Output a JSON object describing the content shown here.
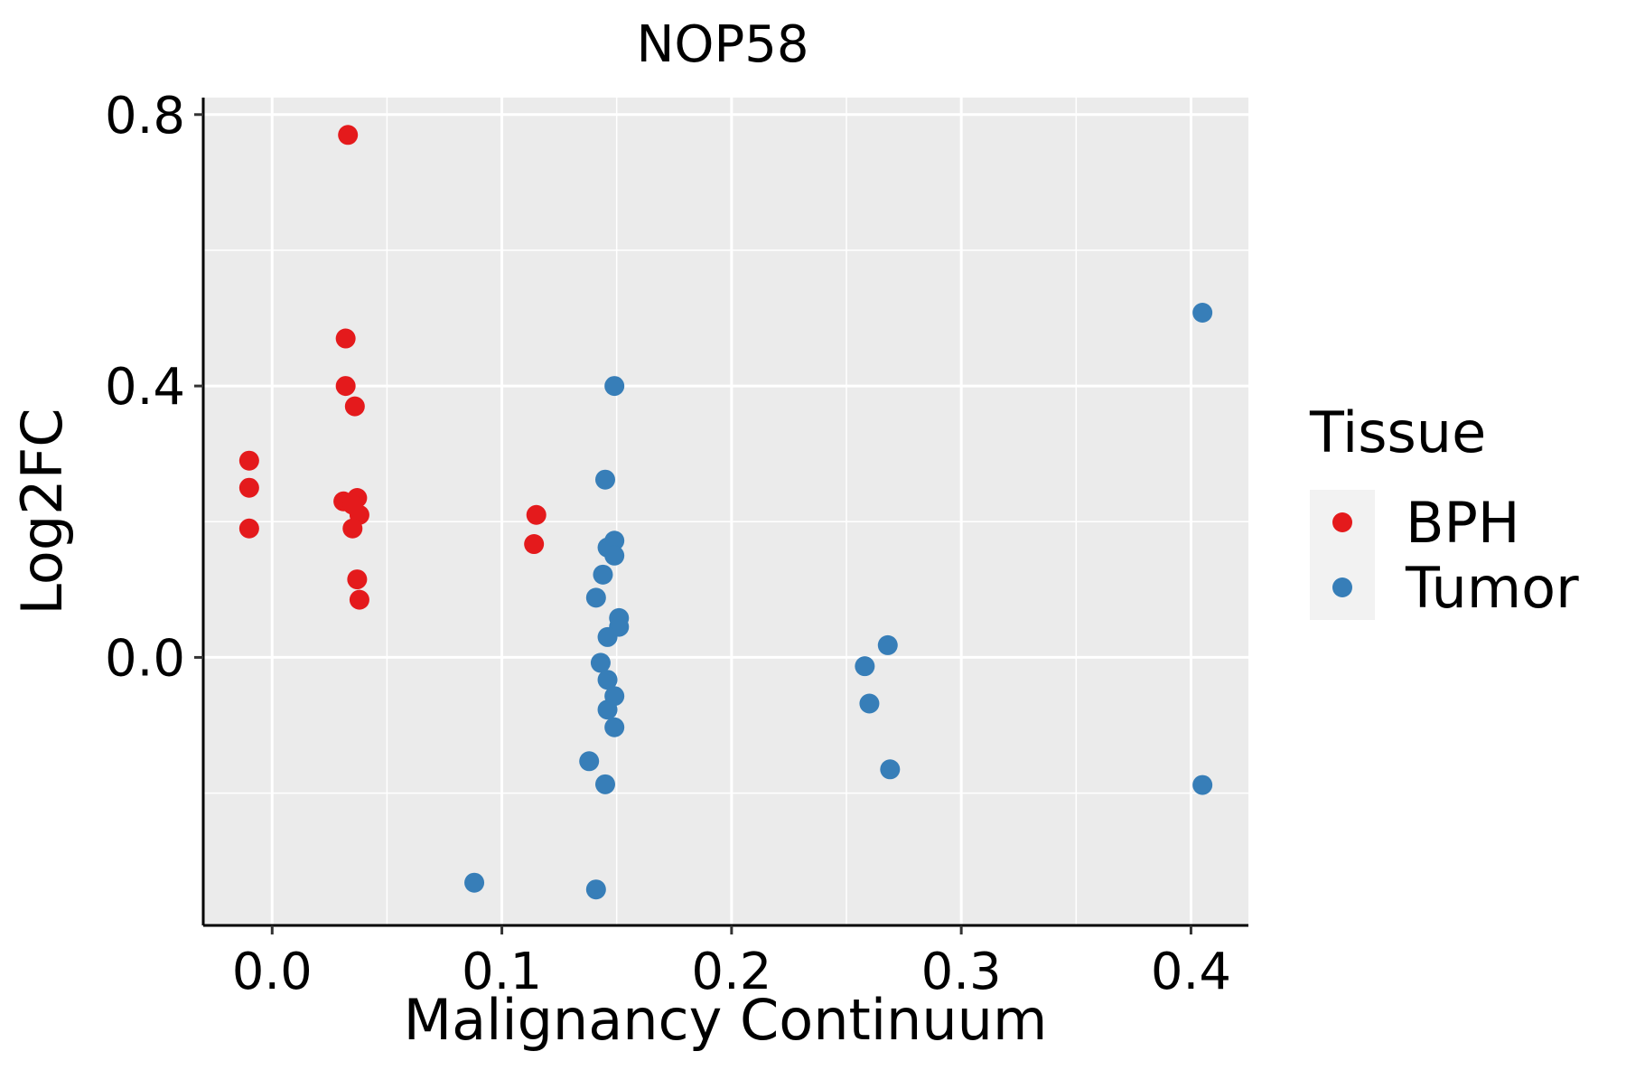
{
  "chart_data": {
    "type": "scatter",
    "title": "NOP58",
    "xlabel": "Malignancy Continuum",
    "ylabel": "Log2FC",
    "xlim": [
      -0.03,
      0.425
    ],
    "ylim": [
      -0.395,
      0.825
    ],
    "x_ticks": [
      0.0,
      0.1,
      0.2,
      0.3,
      0.4
    ],
    "x_tick_labels": [
      "0.0",
      "0.1",
      "0.2",
      "0.3",
      "0.4"
    ],
    "y_ticks": [
      0.0,
      0.4,
      0.8
    ],
    "y_tick_labels": [
      "0.0",
      "0.4",
      "0.8"
    ],
    "grid": true,
    "legend": {
      "title": "Tissue",
      "position": "right"
    },
    "series": [
      {
        "name": "BPH",
        "color": "#E41A1C",
        "points": [
          {
            "x": -0.01,
            "y": 0.29
          },
          {
            "x": -0.01,
            "y": 0.25
          },
          {
            "x": -0.01,
            "y": 0.19
          },
          {
            "x": 0.033,
            "y": 0.77
          },
          {
            "x": 0.032,
            "y": 0.47
          },
          {
            "x": 0.032,
            "y": 0.4
          },
          {
            "x": 0.036,
            "y": 0.37
          },
          {
            "x": 0.031,
            "y": 0.23
          },
          {
            "x": 0.037,
            "y": 0.235
          },
          {
            "x": 0.035,
            "y": 0.225
          },
          {
            "x": 0.038,
            "y": 0.21
          },
          {
            "x": 0.035,
            "y": 0.19
          },
          {
            "x": 0.037,
            "y": 0.115
          },
          {
            "x": 0.038,
            "y": 0.085
          },
          {
            "x": 0.115,
            "y": 0.21
          },
          {
            "x": 0.114,
            "y": 0.167
          }
        ]
      },
      {
        "name": "Tumor",
        "color": "#377EB8",
        "points": [
          {
            "x": 0.149,
            "y": 0.4
          },
          {
            "x": 0.145,
            "y": 0.262
          },
          {
            "x": 0.149,
            "y": 0.172
          },
          {
            "x": 0.146,
            "y": 0.162
          },
          {
            "x": 0.149,
            "y": 0.15
          },
          {
            "x": 0.144,
            "y": 0.122
          },
          {
            "x": 0.141,
            "y": 0.088
          },
          {
            "x": 0.151,
            "y": 0.058
          },
          {
            "x": 0.151,
            "y": 0.045
          },
          {
            "x": 0.146,
            "y": 0.03
          },
          {
            "x": 0.143,
            "y": -0.008
          },
          {
            "x": 0.146,
            "y": -0.033
          },
          {
            "x": 0.149,
            "y": -0.057
          },
          {
            "x": 0.146,
            "y": -0.077
          },
          {
            "x": 0.149,
            "y": -0.103
          },
          {
            "x": 0.138,
            "y": -0.153
          },
          {
            "x": 0.145,
            "y": -0.187
          },
          {
            "x": 0.088,
            "y": -0.332
          },
          {
            "x": 0.141,
            "y": -0.342
          },
          {
            "x": 0.258,
            "y": -0.013
          },
          {
            "x": 0.268,
            "y": 0.018
          },
          {
            "x": 0.26,
            "y": -0.068
          },
          {
            "x": 0.269,
            "y": -0.165
          },
          {
            "x": 0.405,
            "y": 0.508
          },
          {
            "x": 0.405,
            "y": -0.188
          }
        ]
      }
    ]
  }
}
